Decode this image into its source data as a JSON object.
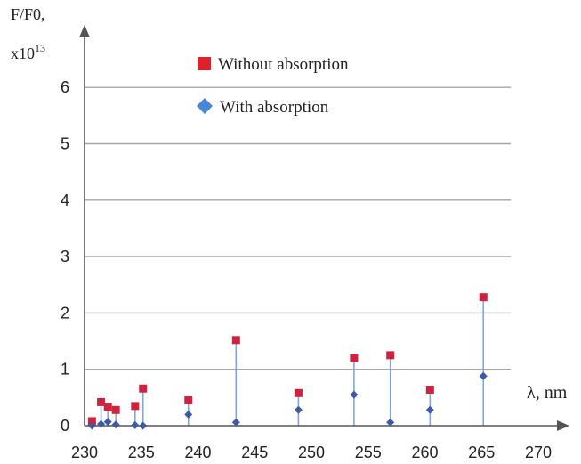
{
  "chart_data": {
    "type": "scatter",
    "ylabel_line1": "F/F0,",
    "ylabel_line2_base": "x10",
    "ylabel_line2_exp": "13",
    "xlabel": "λ, nm",
    "xlim": [
      230,
      270
    ],
    "ylim": [
      0,
      6.8
    ],
    "x_ticks": [
      "230",
      "235",
      "240",
      "245",
      "250",
      "255",
      "260",
      "265",
      "270"
    ],
    "x_tick_values": [
      230,
      235,
      240,
      245,
      250,
      255,
      260,
      265,
      270
    ],
    "y_ticks": [
      "0",
      "1",
      "2",
      "3",
      "4",
      "5",
      "6"
    ],
    "y_tick_values": [
      0,
      1,
      2,
      3,
      4,
      5,
      6
    ],
    "grid": true,
    "legend_position": "top-center",
    "series": [
      {
        "name": "Without absorption",
        "marker": "square",
        "color": "#d0223f",
        "points": [
          {
            "x": 230.5,
            "y": 0.08
          },
          {
            "x": 231.3,
            "y": 0.42
          },
          {
            "x": 231.9,
            "y": 0.33
          },
          {
            "x": 232.6,
            "y": 0.28
          },
          {
            "x": 234.3,
            "y": 0.35
          },
          {
            "x": 235.0,
            "y": 0.66
          },
          {
            "x": 239.0,
            "y": 0.45
          },
          {
            "x": 243.2,
            "y": 1.52
          },
          {
            "x": 248.7,
            "y": 0.58
          },
          {
            "x": 253.6,
            "y": 1.2
          },
          {
            "x": 256.8,
            "y": 1.25
          },
          {
            "x": 260.3,
            "y": 0.64
          },
          {
            "x": 265.0,
            "y": 2.28
          }
        ]
      },
      {
        "name": "With absorption",
        "marker": "diamond",
        "color": "#3d5aa6",
        "points": [
          {
            "x": 230.5,
            "y": 0.0
          },
          {
            "x": 231.3,
            "y": 0.03
          },
          {
            "x": 231.9,
            "y": 0.07
          },
          {
            "x": 232.6,
            "y": 0.02
          },
          {
            "x": 234.3,
            "y": 0.01
          },
          {
            "x": 235.0,
            "y": 0.0
          },
          {
            "x": 239.0,
            "y": 0.2
          },
          {
            "x": 243.2,
            "y": 0.06
          },
          {
            "x": 248.7,
            "y": 0.28
          },
          {
            "x": 253.6,
            "y": 0.55
          },
          {
            "x": 256.8,
            "y": 0.06
          },
          {
            "x": 260.3,
            "y": 0.28
          },
          {
            "x": 265.0,
            "y": 0.88
          }
        ]
      }
    ],
    "stem_color": "#7fa8d8",
    "grid_color": "#a6a6a6",
    "legend_square_color": "#e0202a",
    "legend_diamond_color": "#4a86d8"
  }
}
